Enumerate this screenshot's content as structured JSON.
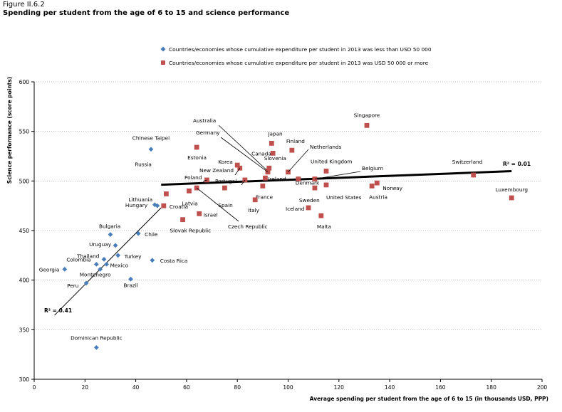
{
  "figure_label": "Figure II.6.2",
  "title": "Spending per student from the age of 6 to 15 and science performance",
  "colors": {
    "low": "#4a7ebb",
    "high": "#c0504d",
    "trend": "#000000",
    "grid": "#bfbfbf"
  },
  "chart_data": {
    "type": "scatter",
    "xlabel": "Average spending per student from the age of 6 to 15 (in thousands USD, PPP)",
    "ylabel": "Science performance (score points)",
    "xlim": [
      0,
      200
    ],
    "ylim": [
      300,
      600
    ],
    "x_ticks": [
      "0",
      "20",
      "40",
      "60",
      "80",
      "100",
      "120",
      "140",
      "160",
      "180",
      "200"
    ],
    "y_ticks": [
      "300",
      "350",
      "400",
      "450",
      "500",
      "550",
      "600"
    ],
    "grid": "horizontal dotted",
    "legend_position": "top-center",
    "series": [
      {
        "name": "Countries/economies whose cumulative expenditure per student in 2013 was less than USD 50 000",
        "marker": "diamond",
        "trend_label": "R² = 0.41",
        "points": [
          {
            "label": "Chinese Taipei",
            "x": 46,
            "y": 532
          },
          {
            "label": "Lithuania",
            "x": 47.5,
            "y": 476
          },
          {
            "label": "Hungary",
            "x": 48.5,
            "y": 475
          },
          {
            "label": "Bulgaria",
            "x": 30,
            "y": 446
          },
          {
            "label": "Chile",
            "x": 41,
            "y": 447
          },
          {
            "label": "Uruguay",
            "x": 32,
            "y": 435
          },
          {
            "label": "Thailand",
            "x": 27.5,
            "y": 421
          },
          {
            "label": "Turkey",
            "x": 33,
            "y": 425
          },
          {
            "label": "Colombia",
            "x": 24.5,
            "y": 416
          },
          {
            "label": "Mexico",
            "x": 28.5,
            "y": 416
          },
          {
            "label": "Montenegro",
            "x": 26,
            "y": 411
          },
          {
            "label": "Georgia",
            "x": 12,
            "y": 411
          },
          {
            "label": "Costa Rica",
            "x": 46.5,
            "y": 420
          },
          {
            "label": "Peru",
            "x": 20.5,
            "y": 397
          },
          {
            "label": "Brazil",
            "x": 38,
            "y": 401
          },
          {
            "label": "Dominican Republic",
            "x": 24.5,
            "y": 332
          }
        ]
      },
      {
        "name": "Countries/economies whose cumulative expenditure per student in 2013 was USD 50 000 or more",
        "marker": "square",
        "trend_label": "R² = 0.01",
        "points": [
          {
            "label": "Singapore",
            "x": 131,
            "y": 556
          },
          {
            "label": "Japan",
            "x": 93.5,
            "y": 538
          },
          {
            "label": "Estonia",
            "x": 64,
            "y": 534
          },
          {
            "label": "Finland",
            "x": 101.5,
            "y": 531
          },
          {
            "label": "Canada",
            "x": 94,
            "y": 528
          },
          {
            "label": "Korea",
            "x": 80,
            "y": 516
          },
          {
            "label": "New Zealand",
            "x": 81,
            "y": 513
          },
          {
            "label": "Slovenia",
            "x": 92.5,
            "y": 513
          },
          {
            "label": "Australia",
            "x": 92,
            "y": 510
          },
          {
            "label": "Germany",
            "x": 92,
            "y": 509
          },
          {
            "label": "Netherlands",
            "x": 100,
            "y": 509
          },
          {
            "label": "United Kingdom",
            "x": 115,
            "y": 510
          },
          {
            "label": "Switzerland",
            "x": 173,
            "y": 506
          },
          {
            "label": "Denmark",
            "x": 104,
            "y": 502
          },
          {
            "label": "Belgium",
            "x": 110.5,
            "y": 502
          },
          {
            "label": "Poland",
            "x": 68,
            "y": 501
          },
          {
            "label": "Portugal",
            "x": 83,
            "y": 501
          },
          {
            "label": "Ireland",
            "x": 91,
            "y": 503
          },
          {
            "label": "Norway",
            "x": 135,
            "y": 498
          },
          {
            "label": "Austria",
            "x": 133,
            "y": 495
          },
          {
            "label": "United States",
            "x": 115,
            "y": 496
          },
          {
            "label": "Spain",
            "x": 75,
            "y": 493
          },
          {
            "label": "France",
            "x": 90,
            "y": 495
          },
          {
            "label": "Russia",
            "x": 52,
            "y": 487
          },
          {
            "label": "Latvia",
            "x": 61,
            "y": 490
          },
          {
            "label": "Sweden",
            "x": 110.5,
            "y": 493
          },
          {
            "label": "Czech Republic",
            "x": 64,
            "y": 493
          },
          {
            "label": "Italy",
            "x": 87,
            "y": 481
          },
          {
            "label": "Luxembourg",
            "x": 188,
            "y": 483
          },
          {
            "label": "Croatia",
            "x": 51,
            "y": 475
          },
          {
            "label": "Iceland",
            "x": 108,
            "y": 473
          },
          {
            "label": "Israel",
            "x": 65,
            "y": 467
          },
          {
            "label": "Malta",
            "x": 113,
            "y": 465
          },
          {
            "label": "Slovak Republic",
            "x": 58.5,
            "y": 461
          }
        ]
      }
    ]
  }
}
